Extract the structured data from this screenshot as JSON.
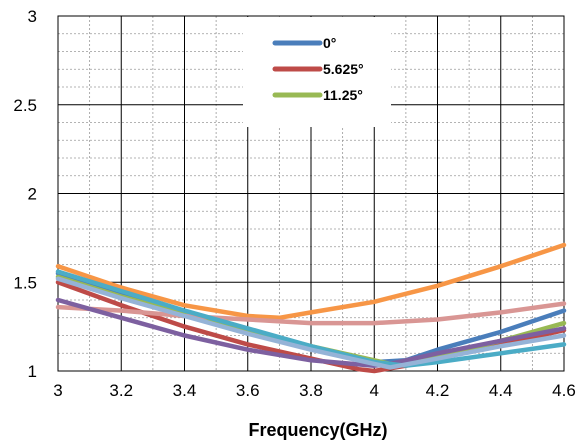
{
  "chart_data": {
    "type": "line",
    "title": "",
    "xlabel": "Frequency(GHz)",
    "ylabel": "",
    "xlim": [
      3,
      4.6
    ],
    "ylim": [
      1,
      3
    ],
    "x_ticks": [
      3,
      3.2,
      3.4,
      3.6,
      3.8,
      4,
      4.2,
      4.4,
      4.6
    ],
    "x_tick_labels": [
      "3",
      "3.2",
      "3.4",
      "3.6",
      "3.8",
      "4",
      "4.2",
      "4.4",
      "4.6"
    ],
    "y_ticks": [
      1,
      1.5,
      2,
      2.5,
      3
    ],
    "y_tick_labels": [
      "1",
      "1.5",
      "2",
      "2.5",
      "3"
    ],
    "x_minor_step": 0.1,
    "y_minor_step": 0.1,
    "grid": true,
    "legend_position": "top-center",
    "series": [
      {
        "name": "0°",
        "color": "#4a7ebb",
        "legend": true,
        "points": [
          [
            3,
            1.55
          ],
          [
            3.2,
            1.43
          ],
          [
            3.4,
            1.32
          ],
          [
            3.6,
            1.22
          ],
          [
            3.8,
            1.13
          ],
          [
            4,
            1.05
          ],
          [
            4.1,
            1.06
          ],
          [
            4.2,
            1.12
          ],
          [
            4.4,
            1.22
          ],
          [
            4.6,
            1.34
          ]
        ]
      },
      {
        "name": "5.625°",
        "color": "#be4b48",
        "legend": true,
        "points": [
          [
            3,
            1.5
          ],
          [
            3.2,
            1.37
          ],
          [
            3.4,
            1.25
          ],
          [
            3.6,
            1.15
          ],
          [
            3.8,
            1.07
          ],
          [
            3.95,
            1.01
          ],
          [
            4,
            1.0
          ],
          [
            4.1,
            1.03
          ],
          [
            4.2,
            1.07
          ],
          [
            4.4,
            1.15
          ],
          [
            4.6,
            1.23
          ]
        ]
      },
      {
        "name": "11.25°",
        "color": "#98b954",
        "legend": true,
        "points": [
          [
            3,
            1.53
          ],
          [
            3.2,
            1.42
          ],
          [
            3.4,
            1.32
          ],
          [
            3.6,
            1.23
          ],
          [
            3.8,
            1.14
          ],
          [
            4,
            1.06
          ],
          [
            4.05,
            1.04
          ],
          [
            4.2,
            1.08
          ],
          [
            4.4,
            1.17
          ],
          [
            4.6,
            1.27
          ]
        ]
      },
      {
        "color": "#f79646",
        "legend": false,
        "points": [
          [
            3,
            1.59
          ],
          [
            3.2,
            1.47
          ],
          [
            3.4,
            1.37
          ],
          [
            3.6,
            1.31
          ],
          [
            3.7,
            1.3
          ],
          [
            3.8,
            1.33
          ],
          [
            4,
            1.39
          ],
          [
            4.2,
            1.48
          ],
          [
            4.4,
            1.59
          ],
          [
            4.6,
            1.71
          ]
        ]
      },
      {
        "color": "#d99694",
        "legend": false,
        "points": [
          [
            3,
            1.36
          ],
          [
            3.2,
            1.34
          ],
          [
            3.4,
            1.31
          ],
          [
            3.6,
            1.29
          ],
          [
            3.8,
            1.27
          ],
          [
            4,
            1.27
          ],
          [
            4.2,
            1.29
          ],
          [
            4.4,
            1.33
          ],
          [
            4.6,
            1.38
          ]
        ]
      },
      {
        "color": "#7d60a0",
        "legend": false,
        "points": [
          [
            3,
            1.4
          ],
          [
            3.2,
            1.3
          ],
          [
            3.4,
            1.2
          ],
          [
            3.6,
            1.12
          ],
          [
            3.8,
            1.06
          ],
          [
            4,
            1.03
          ],
          [
            4.05,
            1.04
          ],
          [
            4.2,
            1.1
          ],
          [
            4.4,
            1.17
          ],
          [
            4.6,
            1.24
          ]
        ]
      },
      {
        "color": "#4bacc6",
        "legend": false,
        "points": [
          [
            3,
            1.56
          ],
          [
            3.2,
            1.45
          ],
          [
            3.4,
            1.34
          ],
          [
            3.6,
            1.24
          ],
          [
            3.8,
            1.14
          ],
          [
            4,
            1.05
          ],
          [
            4.1,
            1.03
          ],
          [
            4.2,
            1.05
          ],
          [
            4.4,
            1.1
          ],
          [
            4.6,
            1.15
          ]
        ]
      },
      {
        "color": "#95b3d7",
        "legend": false,
        "points": [
          [
            3,
            1.52
          ],
          [
            3.2,
            1.41
          ],
          [
            3.4,
            1.31
          ],
          [
            3.6,
            1.21
          ],
          [
            3.8,
            1.12
          ],
          [
            4,
            1.04
          ],
          [
            4.05,
            1.02
          ],
          [
            4.2,
            1.07
          ],
          [
            4.4,
            1.14
          ],
          [
            4.6,
            1.2
          ]
        ]
      }
    ]
  }
}
